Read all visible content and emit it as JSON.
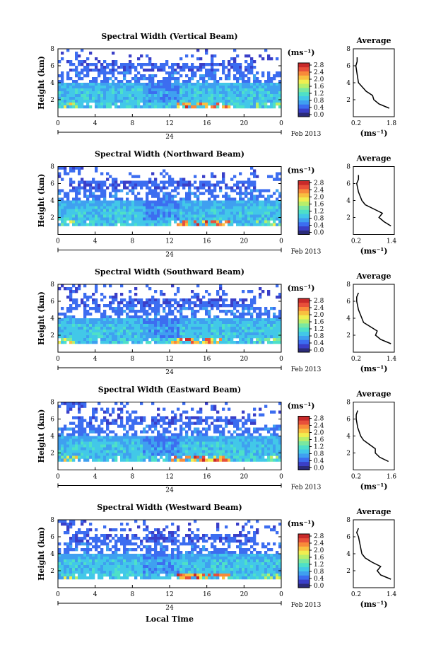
{
  "xlabel": "Local Time",
  "date_label": "Feb 2013",
  "day_marker": "24",
  "colorbar_unit": "(ms⁻¹)",
  "avg_unit": "(ms⁻¹)",
  "avg_title": "Average",
  "ylabel": "Height (km)",
  "colormap": [
    "#2b2b7a",
    "#3a3fc8",
    "#3c6df0",
    "#3fa0f0",
    "#42c8e8",
    "#4ee0c8",
    "#7ae8a0",
    "#b8ee6a",
    "#f0ee50",
    "#f8c040",
    "#f88a3a",
    "#e8503a",
    "#c82a2a"
  ],
  "chart_data": [
    {
      "type": "heatmap",
      "title": "Spectral Width (Vertical Beam)",
      "x_ticks": [
        "0",
        "4",
        "8",
        "12",
        "16",
        "20",
        "0"
      ],
      "y_ticks": [
        "8",
        "6",
        "4",
        "2"
      ],
      "colorbar_ticks": [
        "2.8",
        "2.4",
        "2.0",
        "1.6",
        "1.2",
        "0.8",
        "0.4",
        "0.0"
      ],
      "average": {
        "xlim": [
          0.2,
          1.8
        ],
        "x_ticks": [
          "0.2",
          "1.8"
        ],
        "y_ticks": [
          "8",
          "6",
          "4",
          "2"
        ],
        "profile": [
          [
            1.6,
            1.0
          ],
          [
            1.2,
            1.5
          ],
          [
            1.0,
            2.0
          ],
          [
            0.95,
            2.5
          ],
          [
            0.7,
            3.0
          ],
          [
            0.55,
            3.5
          ],
          [
            0.4,
            4.0
          ],
          [
            0.35,
            5.0
          ],
          [
            0.3,
            6.0
          ],
          [
            0.35,
            6.5
          ],
          [
            0.35,
            7.0
          ]
        ]
      }
    },
    {
      "type": "heatmap",
      "title": "Spectral Width (Northward Beam)",
      "x_ticks": [
        "0",
        "4",
        "8",
        "12",
        "16",
        "20",
        "0"
      ],
      "y_ticks": [
        "8",
        "6",
        "4",
        "2"
      ],
      "colorbar_ticks": [
        "2.8",
        "2.4",
        "2.0",
        "1.6",
        "1.2",
        "0.8",
        "0.4",
        "0.0"
      ],
      "average": {
        "xlim": [
          0.2,
          1.4
        ],
        "x_ticks": [
          "0.2",
          "1.4"
        ],
        "y_ticks": [
          "8",
          "6",
          "4",
          "2"
        ],
        "profile": [
          [
            1.3,
            1.0
          ],
          [
            1.1,
            1.5
          ],
          [
            0.95,
            2.0
          ],
          [
            1.05,
            2.5
          ],
          [
            0.8,
            3.0
          ],
          [
            0.55,
            3.5
          ],
          [
            0.45,
            4.0
          ],
          [
            0.35,
            5.0
          ],
          [
            0.3,
            6.0
          ],
          [
            0.35,
            6.5
          ],
          [
            0.35,
            7.0
          ]
        ]
      }
    },
    {
      "type": "heatmap",
      "title": "Spectral Width (Southward Beam)",
      "x_ticks": [
        "0",
        "4",
        "8",
        "12",
        "16",
        "20",
        "0"
      ],
      "y_ticks": [
        "8",
        "6",
        "4",
        "2"
      ],
      "colorbar_ticks": [
        "2.8",
        "2.4",
        "2.0",
        "1.6",
        "1.2",
        "0.8",
        "0.4",
        "0.0"
      ],
      "average": {
        "xlim": [
          0.2,
          1.4
        ],
        "x_ticks": [
          "0.2",
          "1.4"
        ],
        "y_ticks": [
          "8",
          "6",
          "4",
          "2"
        ],
        "profile": [
          [
            1.3,
            1.0
          ],
          [
            1.0,
            1.5
          ],
          [
            0.85,
            2.0
          ],
          [
            0.9,
            2.5
          ],
          [
            0.7,
            3.0
          ],
          [
            0.5,
            3.5
          ],
          [
            0.45,
            4.0
          ],
          [
            0.35,
            5.0
          ],
          [
            0.3,
            6.0
          ],
          [
            0.3,
            6.5
          ],
          [
            0.35,
            7.0
          ]
        ]
      }
    },
    {
      "type": "heatmap",
      "title": "Spectral Width (Eastward Beam)",
      "x_ticks": [
        "0",
        "4",
        "8",
        "12",
        "16",
        "20",
        "0"
      ],
      "y_ticks": [
        "8",
        "6",
        "4",
        "2"
      ],
      "colorbar_ticks": [
        "2.8",
        "2.4",
        "2.0",
        "1.6",
        "1.2",
        "0.8",
        "0.4",
        "0.0"
      ],
      "average": {
        "xlim": [
          0.2,
          1.6
        ],
        "x_ticks": [
          "0.2",
          "1.6"
        ],
        "y_ticks": [
          "8",
          "6",
          "4",
          "2"
        ],
        "profile": [
          [
            1.4,
            1.0
          ],
          [
            1.1,
            1.5
          ],
          [
            0.95,
            2.0
          ],
          [
            0.95,
            2.5
          ],
          [
            0.75,
            3.0
          ],
          [
            0.55,
            3.5
          ],
          [
            0.45,
            4.0
          ],
          [
            0.35,
            5.0
          ],
          [
            0.3,
            6.0
          ],
          [
            0.3,
            6.5
          ],
          [
            0.35,
            7.0
          ]
        ]
      }
    },
    {
      "type": "heatmap",
      "title": "Spectral Width (Westward Beam)",
      "x_ticks": [
        "0",
        "4",
        "8",
        "12",
        "16",
        "20",
        "0"
      ],
      "y_ticks": [
        "8",
        "6",
        "4",
        "2"
      ],
      "colorbar_ticks": [
        "2.8",
        "2.4",
        "2.0",
        "1.6",
        "1.2",
        "0.8",
        "0.4",
        "0.0"
      ],
      "average": {
        "xlim": [
          0.2,
          1.4
        ],
        "x_ticks": [
          "0.2",
          "1.4"
        ],
        "y_ticks": [
          "8",
          "6",
          "4",
          "2"
        ],
        "profile": [
          [
            1.3,
            1.0
          ],
          [
            1.0,
            1.5
          ],
          [
            0.9,
            2.0
          ],
          [
            1.0,
            2.5
          ],
          [
            0.75,
            3.0
          ],
          [
            0.55,
            3.5
          ],
          [
            0.45,
            4.0
          ],
          [
            0.4,
            5.0
          ],
          [
            0.35,
            6.0
          ],
          [
            0.3,
            6.5
          ],
          [
            0.35,
            7.0
          ]
        ]
      }
    }
  ]
}
